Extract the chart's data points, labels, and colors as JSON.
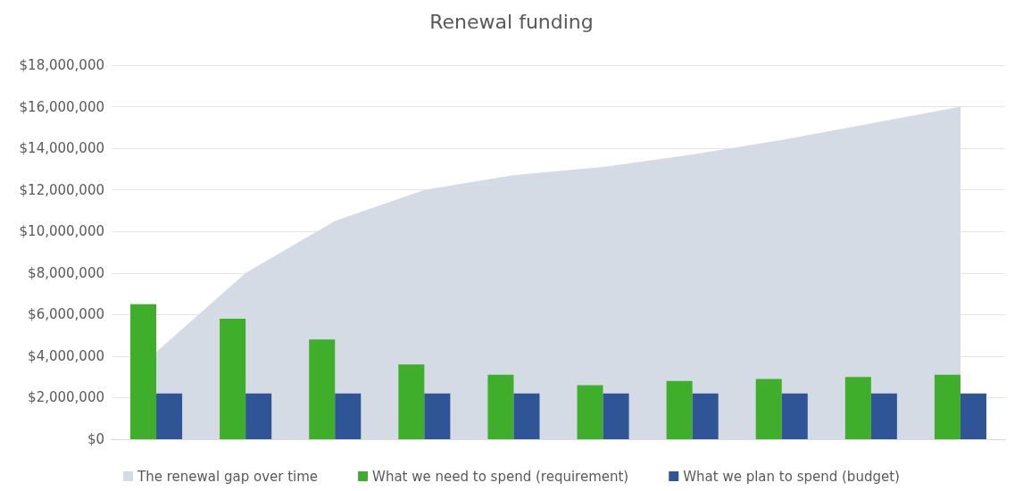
{
  "chart_data": {
    "type": "bar",
    "title": "Renewal funding",
    "categories": [
      null,
      null,
      null,
      null,
      null,
      null,
      null,
      null,
      null,
      null
    ],
    "series": [
      {
        "name": "The renewal gap over time",
        "type": "area",
        "color": "#d5dbe5",
        "values": [
          4200000,
          8000000,
          10500000,
          12000000,
          12700000,
          13100000,
          13700000,
          14400000,
          15200000,
          16000000
        ]
      },
      {
        "name": "What we need to spend (requirement)",
        "color": "#3fae2a",
        "values": [
          6500000,
          5800000,
          4800000,
          3600000,
          3100000,
          2600000,
          2800000,
          2900000,
          3000000,
          3100000
        ]
      },
      {
        "name": "What we plan to spend (budget)",
        "color": "#2f5597",
        "values": [
          2200000,
          2200000,
          2200000,
          2200000,
          2200000,
          2200000,
          2200000,
          2200000,
          2200000,
          2200000
        ]
      }
    ],
    "ylim": [
      0,
      18000000
    ],
    "yticks": [
      {
        "value": 0,
        "label": "$0"
      },
      {
        "value": 2000000,
        "label": "$2,000,000"
      },
      {
        "value": 4000000,
        "label": "$4,000,000"
      },
      {
        "value": 6000000,
        "label": "$6,000,000"
      },
      {
        "value": 8000000,
        "label": "$8,000,000"
      },
      {
        "value": 10000000,
        "label": "$10,000,000"
      },
      {
        "value": 12000000,
        "label": "$12,000,000"
      },
      {
        "value": 14000000,
        "label": "$14,000,000"
      },
      {
        "value": 16000000,
        "label": "$16,000,000"
      },
      {
        "value": 18000000,
        "label": "$18,000,000"
      }
    ],
    "grid": "y",
    "legend": "bottom"
  }
}
